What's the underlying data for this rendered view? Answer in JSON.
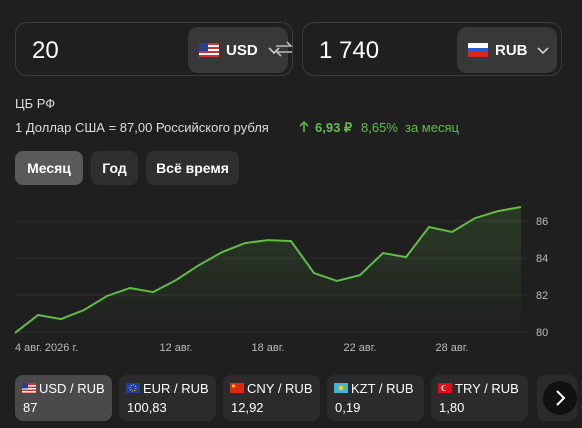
{
  "converter": {
    "from": {
      "amount": "20",
      "currency": "USD"
    },
    "to": {
      "amount": "1 740",
      "currency": "RUB"
    }
  },
  "rate": {
    "source": "ЦБ РФ",
    "text": "1 Доллар США = 87,00 Российского рубля",
    "change": "6,93 ₽",
    "percent": "8,65%",
    "period": "за месяц"
  },
  "periods": [
    "Месяц",
    "Год",
    "Всё время"
  ],
  "chart_data": {
    "type": "line",
    "categories": [
      "4 авг. 2026 г.",
      null,
      null,
      null,
      null,
      null,
      null,
      "12 авг.",
      null,
      null,
      null,
      "18 авг.",
      null,
      null,
      null,
      "22 авг.",
      null,
      null,
      null,
      "28 авг.",
      null,
      null,
      null
    ],
    "values": [
      79.95,
      80.92,
      80.7,
      81.19,
      81.95,
      82.38,
      82.16,
      82.81,
      83.62,
      84.32,
      84.81,
      84.97,
      84.92,
      83.19,
      82.76,
      83.08,
      84.27,
      84.05,
      85.68,
      85.41,
      86.16,
      86.54,
      86.76
    ],
    "color": "#62bd45",
    "ylim": [
      79.84,
      87.14
    ],
    "yticks": [
      80,
      82,
      84,
      86
    ],
    "grid": true
  },
  "pairs": [
    {
      "label": "USD / RUB",
      "value": "87"
    },
    {
      "label": "EUR / RUB",
      "value": "100,83"
    },
    {
      "label": "CNY / RUB",
      "value": "12,92"
    },
    {
      "label": "KZT / RUB",
      "value": "0,19"
    },
    {
      "label": "TRY / RUB",
      "value": "1,80"
    }
  ]
}
